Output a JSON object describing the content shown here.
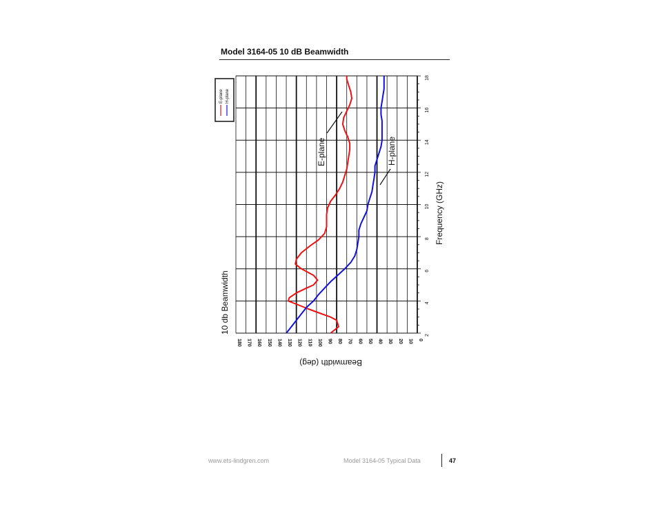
{
  "page": {
    "title": "Model 3164-05 10 dB Beamwidth",
    "footer_url": "www.ets-lindgren.com",
    "footer_doc": "Model 3164-05 Typical Data",
    "page_number": "47"
  },
  "chart_data": {
    "type": "line",
    "orientation": "rotated-90-clockwise",
    "title": "10 db Beamwidth",
    "xlabel": "Frequency (GHz)",
    "ylabel": "Beamwidth (deg)",
    "xlim": [
      2,
      18
    ],
    "ylim": [
      0,
      180
    ],
    "x_ticks": [
      "2",
      "4",
      "6",
      "8",
      "10",
      "12",
      "14",
      "16",
      "18"
    ],
    "y_ticks": [
      "180",
      "170",
      "160",
      "150",
      "140",
      "130",
      "120",
      "110",
      "100",
      "90",
      "80",
      "70",
      "60",
      "50",
      "40",
      "30",
      "20",
      "10",
      "0"
    ],
    "grid": true,
    "legend": {
      "placement": "top-left",
      "entries": [
        "E-plane",
        "H-plane"
      ]
    },
    "annotations": [
      {
        "text": "E-plane",
        "series": "E-plane"
      },
      {
        "text": "H-plane",
        "series": "H-plane"
      }
    ],
    "series": [
      {
        "name": "E-plane",
        "color": "#ee1111",
        "x": [
          2.0,
          2.4,
          2.8,
          3.0,
          3.2,
          3.5,
          3.8,
          4.0,
          4.2,
          4.5,
          4.8,
          5.0,
          5.3,
          5.6,
          6.0,
          6.3,
          6.6,
          7.0,
          7.4,
          7.8,
          8.2,
          8.6,
          9.0,
          9.4,
          9.8,
          10.2,
          10.6,
          11.0,
          11.4,
          11.8,
          12.2,
          12.6,
          13.0,
          13.4,
          13.8,
          14.2,
          14.6,
          15.0,
          15.4,
          15.8,
          16.2,
          16.6,
          17.0,
          17.4,
          17.8,
          18.0
        ],
        "y": [
          86,
          78,
          80,
          86,
          95,
          108,
          120,
          128,
          127,
          120,
          110,
          103,
          99,
          103,
          115,
          121,
          120,
          115,
          107,
          98,
          92,
          90,
          90,
          90,
          89,
          86,
          81,
          77,
          74,
          72,
          70,
          69,
          68,
          67,
          67,
          69,
          72,
          74,
          73,
          70,
          67,
          65,
          66,
          68,
          70,
          70
        ]
      },
      {
        "name": "H-plane",
        "color": "#1111dd",
        "x": [
          2.0,
          2.4,
          2.8,
          3.2,
          3.6,
          4.0,
          4.4,
          4.8,
          5.2,
          5.6,
          6.0,
          6.4,
          6.8,
          7.2,
          7.6,
          8.0,
          8.4,
          8.8,
          9.2,
          9.6,
          10.0,
          10.4,
          10.8,
          11.2,
          11.6,
          12.0,
          12.4,
          12.8,
          13.2,
          13.6,
          14.0,
          14.4,
          14.8,
          15.2,
          15.6,
          16.0,
          16.4,
          16.8,
          17.2,
          17.6,
          18.0
        ],
        "y": [
          130,
          125,
          120,
          115,
          110,
          103,
          98,
          92,
          86,
          79,
          72,
          66,
          62,
          60,
          59,
          58,
          58,
          56,
          53,
          50,
          49,
          47,
          45,
          44,
          43,
          42,
          42,
          40,
          38,
          36,
          35,
          35,
          35,
          35,
          36,
          36,
          35,
          34,
          33,
          33,
          33
        ]
      }
    ]
  }
}
